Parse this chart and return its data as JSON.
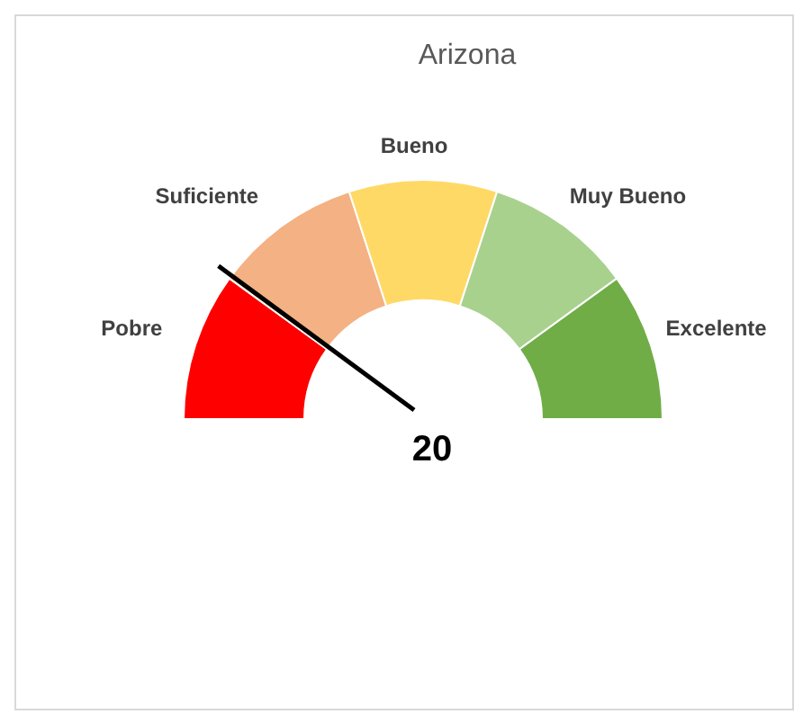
{
  "chart_data": {
    "type": "donut",
    "title": "Arizona",
    "categories": [
      "Pobre",
      "Suficiente",
      "Bueno",
      "Muy Bueno",
      "Excelente"
    ],
    "values": [
      20,
      20,
      20,
      20,
      20
    ],
    "colors": [
      "#ff0000",
      "#f4b183",
      "#ffd966",
      "#a9d18e",
      "#70ad47"
    ],
    "needle": "Suficiente",
    "annotations": [
      "20"
    ]
  }
}
